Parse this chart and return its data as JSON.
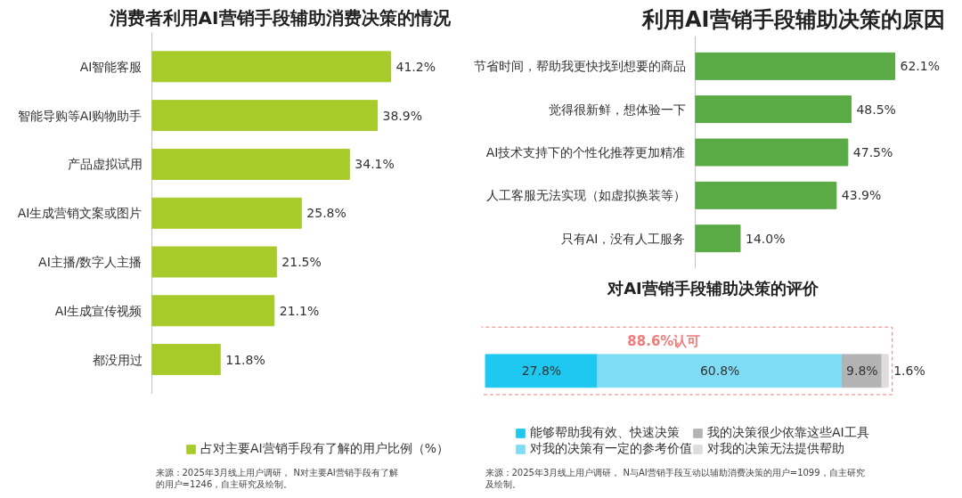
{
  "chart_data": [
    {
      "type": "bar",
      "orientation": "horizontal",
      "title": "消费者利用AI营销手段辅助消费决策的情况",
      "categories": [
        "AI智能客服",
        "智能导购等AI购物助手",
        "产品虚拟试用",
        "AI生成营销文案或图片",
        "AI主播/数字人主播",
        "AI生成宣传视频",
        "都没用过"
      ],
      "series": [
        {
          "name": "占对主要AI营销手段有了解的用户比例（%）",
          "color": "#a8cb2c",
          "values": [
            41.2,
            38.9,
            34.1,
            25.8,
            21.5,
            21.1,
            11.8
          ],
          "value_labels": [
            "41.2%",
            "38.9%",
            "34.1%",
            "25.8%",
            "21.5%",
            "21.1%",
            "11.8%"
          ]
        }
      ],
      "legend": "bottom",
      "tick_labels": "y",
      "annotations": [
        "来源：2025年3月线上用户调研， N对主要AI营销手段有了解的用户=1246，自主研究及绘制。"
      ]
    },
    {
      "type": "bar",
      "orientation": "horizontal",
      "title": "利用AI营销手段辅助决策的原因",
      "categories": [
        "节省时间，帮助我更快找到想要的商品",
        "觉得很新鲜，想体验一下",
        "AI技术支持下的个性化推荐更加精准",
        "人工客服无法实现（如虚拟换装等）",
        "只有AI，没有人工服务"
      ],
      "series": [
        {
          "color": "#5aaa46",
          "values": [
            62.1,
            48.5,
            47.5,
            43.9,
            14.0
          ],
          "value_labels": [
            "62.1%",
            "48.5%",
            "47.5%",
            "43.9%",
            "14.0%"
          ]
        }
      ],
      "tick_labels": "y"
    },
    {
      "type": "bar",
      "orientation": "horizontal",
      "stacked": true,
      "title": "对AI营销手段辅助决策的评价",
      "categories": [
        null
      ],
      "series": [
        {
          "name": "能够帮助我有效、快速决策",
          "color": "#1ec8f0",
          "values": [
            27.8
          ],
          "value_labels": [
            "27.8%"
          ]
        },
        {
          "name": "对我的决策有一定的参考价值",
          "color": "#7fdcf5",
          "values": [
            60.8
          ],
          "value_labels": [
            "60.8%"
          ]
        },
        {
          "name": "我的决策很少依靠这些AI工具",
          "color": "#b3b3b3",
          "values": [
            9.8
          ],
          "value_labels": [
            "9.8%"
          ]
        },
        {
          "name": "对我的决策无法提供帮助",
          "color": "#dddddd",
          "values": [
            1.6
          ],
          "value_labels": [
            "1.6%"
          ]
        }
      ],
      "legend": "bottom",
      "tick_labels": false,
      "annotations": [
        "88.6%认可",
        "来源：2025年3月线上用户调研， N与AI营销手段互动以辅助消费决策的用户=1099，自主研究及绘制。"
      ]
    }
  ]
}
